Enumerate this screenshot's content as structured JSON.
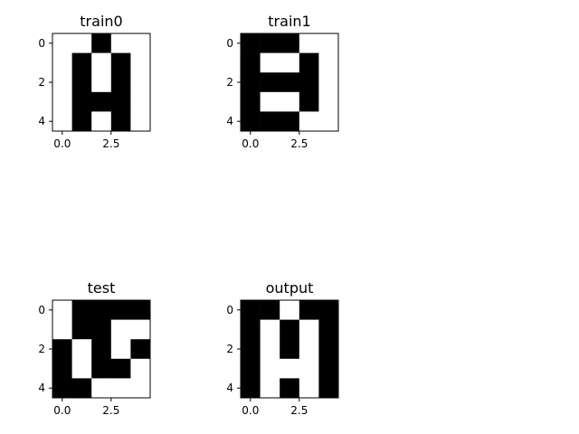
{
  "chart_data": [
    {
      "type": "heatmap",
      "title": "train0",
      "xticks": [
        "0.0",
        "2.5"
      ],
      "yticks": [
        "0",
        "2",
        "4"
      ],
      "grid": [
        [
          0,
          0,
          1,
          0,
          0
        ],
        [
          0,
          1,
          0,
          1,
          0
        ],
        [
          0,
          1,
          0,
          1,
          0
        ],
        [
          0,
          1,
          1,
          1,
          0
        ],
        [
          0,
          1,
          0,
          1,
          0
        ]
      ]
    },
    {
      "type": "heatmap",
      "title": "train1",
      "xticks": [
        "0.0",
        "2.5"
      ],
      "yticks": [
        "0",
        "2",
        "4"
      ],
      "grid": [
        [
          1,
          1,
          1,
          0,
          0
        ],
        [
          1,
          0,
          0,
          1,
          0
        ],
        [
          1,
          1,
          1,
          1,
          0
        ],
        [
          1,
          0,
          0,
          1,
          0
        ],
        [
          1,
          1,
          1,
          0,
          0
        ]
      ]
    },
    {
      "type": "heatmap",
      "title": "test",
      "xticks": [
        "0.0",
        "2.5"
      ],
      "yticks": [
        "0",
        "2",
        "4"
      ],
      "grid": [
        [
          0,
          1,
          1,
          1,
          1
        ],
        [
          0,
          1,
          1,
          0,
          0
        ],
        [
          1,
          0,
          1,
          0,
          1
        ],
        [
          1,
          0,
          1,
          1,
          0
        ],
        [
          1,
          1,
          0,
          0,
          0
        ]
      ]
    },
    {
      "type": "heatmap",
      "title": "output",
      "xticks": [
        "0.0",
        "2.5"
      ],
      "yticks": [
        "0",
        "2",
        "4"
      ],
      "grid": [
        [
          1,
          1,
          0,
          1,
          1
        ],
        [
          1,
          0,
          1,
          0,
          1
        ],
        [
          1,
          0,
          1,
          0,
          1
        ],
        [
          1,
          0,
          0,
          0,
          1
        ],
        [
          1,
          0,
          1,
          0,
          1
        ]
      ]
    }
  ],
  "colors": {
    "filled": "#000000",
    "empty": "#ffffff",
    "axis": "#000000"
  }
}
